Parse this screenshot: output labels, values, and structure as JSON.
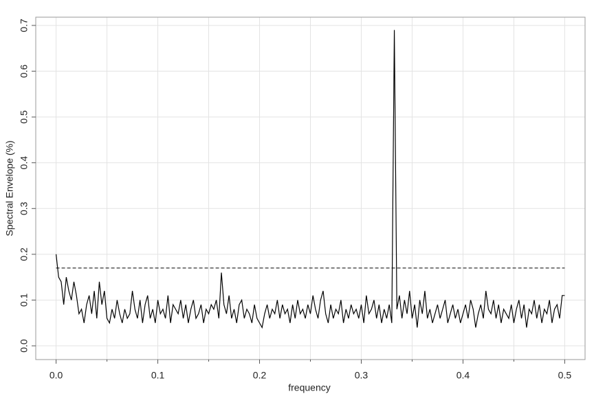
{
  "chart_data": {
    "type": "line",
    "xlabel": "frequency",
    "ylabel": "Spectral Envelope (%)",
    "color": "#000000",
    "threshold": 0.17,
    "threshold_style": "dashed",
    "grid": true,
    "xlim": [
      -0.02,
      0.52
    ],
    "ylim": [
      -0.03,
      0.718
    ],
    "xticks": [
      {
        "value": 0,
        "label": "0.0"
      },
      0.1,
      0.2,
      0.3,
      0.4,
      0.5
    ],
    "xminorticks": [
      0.05,
      0.15,
      0.25,
      0.35,
      0.45
    ],
    "yticks": [
      {
        "value": 0,
        "label": "0.0"
      },
      0.1,
      0.2,
      0.3,
      0.4,
      0.5,
      0.6,
      0.7
    ],
    "x": [
      0,
      0.0025,
      0.005,
      0.0075,
      0.01,
      0.0125,
      0.015,
      0.0175,
      0.02,
      0.0225,
      0.025,
      0.0275,
      0.03,
      0.0325,
      0.035,
      0.0375,
      0.04,
      0.0425,
      0.045,
      0.0475,
      0.05,
      0.0525,
      0.055,
      0.0575,
      0.06,
      0.0625,
      0.065,
      0.0675,
      0.07,
      0.0725,
      0.075,
      0.0775,
      0.08,
      0.0825,
      0.085,
      0.0875,
      0.09,
      0.0925,
      0.095,
      0.0975,
      0.1,
      0.1025,
      0.105,
      0.1075,
      0.11,
      0.1125,
      0.115,
      0.1175,
      0.12,
      0.1225,
      0.125,
      0.1275,
      0.13,
      0.1325,
      0.135,
      0.1375,
      0.14,
      0.1425,
      0.145,
      0.1475,
      0.15,
      0.1525,
      0.155,
      0.1575,
      0.16,
      0.1625,
      0.165,
      0.1675,
      0.17,
      0.1725,
      0.175,
      0.1775,
      0.18,
      0.1825,
      0.185,
      0.1875,
      0.19,
      0.1925,
      0.195,
      0.1975,
      0.2,
      0.2025,
      0.205,
      0.2075,
      0.21,
      0.2125,
      0.215,
      0.2175,
      0.22,
      0.2225,
      0.225,
      0.2275,
      0.23,
      0.2325,
      0.235,
      0.2375,
      0.24,
      0.2425,
      0.245,
      0.2475,
      0.25,
      0.2525,
      0.255,
      0.2575,
      0.26,
      0.2625,
      0.265,
      0.2675,
      0.27,
      0.2725,
      0.275,
      0.2775,
      0.28,
      0.2825,
      0.285,
      0.2875,
      0.29,
      0.2925,
      0.295,
      0.2975,
      0.3,
      0.3025,
      0.305,
      0.3075,
      0.31,
      0.3125,
      0.315,
      0.3175,
      0.32,
      0.3225,
      0.325,
      0.3275,
      0.33,
      0.3325,
      0.335,
      0.3375,
      0.34,
      0.3425,
      0.345,
      0.3475,
      0.35,
      0.3525,
      0.355,
      0.3575,
      0.36,
      0.3625,
      0.365,
      0.3675,
      0.37,
      0.3725,
      0.375,
      0.3775,
      0.38,
      0.3825,
      0.385,
      0.3875,
      0.39,
      0.3925,
      0.395,
      0.3975,
      0.4,
      0.4025,
      0.405,
      0.4075,
      0.41,
      0.4125,
      0.415,
      0.4175,
      0.42,
      0.4225,
      0.425,
      0.4275,
      0.43,
      0.4325,
      0.435,
      0.4375,
      0.44,
      0.4425,
      0.445,
      0.4475,
      0.45,
      0.4525,
      0.455,
      0.4575,
      0.46,
      0.4625,
      0.465,
      0.4675,
      0.47,
      0.4725,
      0.475,
      0.4775,
      0.48,
      0.4825,
      0.485,
      0.4875,
      0.49,
      0.4925,
      0.495,
      0.4975,
      0.5
    ],
    "values": [
      0.2,
      0.15,
      0.14,
      0.09,
      0.15,
      0.12,
      0.1,
      0.14,
      0.11,
      0.07,
      0.08,
      0.05,
      0.09,
      0.11,
      0.07,
      0.12,
      0.06,
      0.14,
      0.09,
      0.12,
      0.06,
      0.05,
      0.08,
      0.06,
      0.1,
      0.07,
      0.05,
      0.08,
      0.06,
      0.07,
      0.12,
      0.08,
      0.06,
      0.1,
      0.05,
      0.09,
      0.11,
      0.06,
      0.08,
      0.05,
      0.1,
      0.07,
      0.08,
      0.06,
      0.11,
      0.05,
      0.09,
      0.08,
      0.07,
      0.1,
      0.06,
      0.09,
      0.05,
      0.08,
      0.1,
      0.06,
      0.07,
      0.09,
      0.05,
      0.08,
      0.07,
      0.09,
      0.08,
      0.1,
      0.06,
      0.16,
      0.09,
      0.07,
      0.11,
      0.06,
      0.08,
      0.05,
      0.09,
      0.1,
      0.06,
      0.08,
      0.07,
      0.05,
      0.09,
      0.06,
      0.05,
      0.04,
      0.07,
      0.09,
      0.06,
      0.08,
      0.07,
      0.1,
      0.06,
      0.09,
      0.07,
      0.08,
      0.05,
      0.09,
      0.06,
      0.1,
      0.07,
      0.08,
      0.06,
      0.09,
      0.07,
      0.11,
      0.08,
      0.06,
      0.1,
      0.12,
      0.07,
      0.05,
      0.09,
      0.06,
      0.08,
      0.07,
      0.1,
      0.05,
      0.08,
      0.06,
      0.09,
      0.07,
      0.08,
      0.06,
      0.09,
      0.05,
      0.11,
      0.07,
      0.08,
      0.1,
      0.06,
      0.09,
      0.05,
      0.08,
      0.06,
      0.09,
      0.05,
      0.69,
      0.08,
      0.11,
      0.06,
      0.1,
      0.07,
      0.12,
      0.06,
      0.09,
      0.04,
      0.1,
      0.07,
      0.12,
      0.06,
      0.08,
      0.05,
      0.07,
      0.09,
      0.06,
      0.08,
      0.1,
      0.05,
      0.07,
      0.09,
      0.06,
      0.08,
      0.05,
      0.07,
      0.09,
      0.06,
      0.1,
      0.08,
      0.04,
      0.07,
      0.09,
      0.06,
      0.12,
      0.08,
      0.07,
      0.1,
      0.06,
      0.09,
      0.05,
      0.08,
      0.07,
      0.06,
      0.09,
      0.05,
      0.08,
      0.1,
      0.06,
      0.09,
      0.04,
      0.08,
      0.07,
      0.1,
      0.06,
      0.09,
      0.05,
      0.08,
      0.07,
      0.1,
      0.05,
      0.08,
      0.09,
      0.06,
      0.11,
      0.11
    ]
  }
}
